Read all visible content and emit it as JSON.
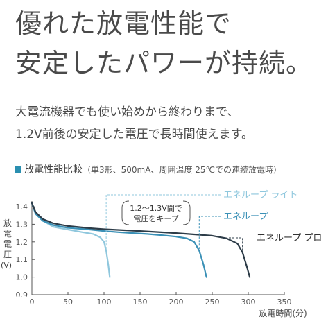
{
  "headline": [
    "優れた放電性能で",
    "安定したパワーが持続。"
  ],
  "body_copy": [
    "大電流機器でも使い始めから終わりまで、",
    "1.2V前後の安定した電圧で長時間使えます。"
  ],
  "chart_title": {
    "main": "放電性能比較",
    "condition": "（単3形、500mA、周囲温度 25℃での連続放電時）"
  },
  "colors": {
    "accent": "#2a8fb0",
    "lite": "#8fc7dd",
    "standard": "#3a90b6",
    "pro": "#2d3c48",
    "text": "#4a4a4a"
  },
  "chart_data": {
    "type": "line",
    "title": "放電性能比較",
    "xlabel": "放電時間(分)",
    "ylabel": "放電電圧(V)",
    "xlim": [
      0,
      350
    ],
    "ylim": [
      0.9,
      1.4
    ],
    "x_ticks": [
      "0",
      "50",
      "100",
      "150",
      "200",
      "250",
      "300",
      "350"
    ],
    "y_ticks": [
      "0.9",
      "1.0",
      "1.1",
      "1.2",
      "1.3",
      "1.4"
    ],
    "grid": false,
    "series": [
      {
        "name": "エネループ ライト",
        "color": "#8fc7dd",
        "x": [
          0,
          5,
          15,
          30,
          50,
          70,
          85,
          95,
          100,
          103,
          106,
          108
        ],
        "y": [
          1.42,
          1.37,
          1.32,
          1.285,
          1.27,
          1.255,
          1.245,
          1.225,
          1.2,
          1.15,
          1.07,
          1.0
        ]
      },
      {
        "name": "エネループ",
        "color": "#3a90b6",
        "x": [
          0,
          5,
          15,
          30,
          50,
          80,
          100,
          120,
          140,
          160,
          180,
          200,
          215,
          225,
          232,
          238,
          242
        ],
        "y": [
          1.42,
          1.36,
          1.32,
          1.295,
          1.28,
          1.27,
          1.262,
          1.255,
          1.25,
          1.245,
          1.238,
          1.23,
          1.22,
          1.2,
          1.15,
          1.07,
          1.0
        ]
      },
      {
        "name": "エネループ プロ",
        "color": "#2d3c48",
        "x": [
          0,
          5,
          15,
          30,
          50,
          80,
          100,
          150,
          200,
          250,
          270,
          285,
          292,
          298,
          302
        ],
        "y": [
          1.42,
          1.37,
          1.33,
          1.305,
          1.29,
          1.278,
          1.272,
          1.262,
          1.25,
          1.235,
          1.22,
          1.19,
          1.14,
          1.06,
          1.0
        ]
      }
    ],
    "annotation": [
      "1.2～1.3V間で",
      "電圧をキープ"
    ]
  }
}
